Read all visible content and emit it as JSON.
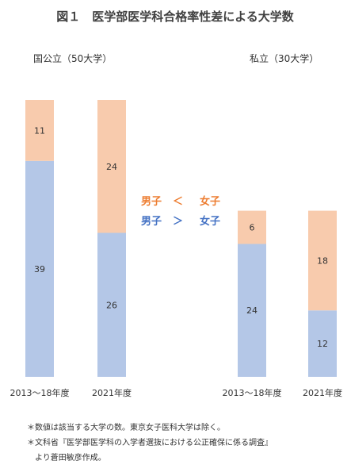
{
  "chart_data": {
    "type": "bar",
    "stacked": true,
    "title": "図１　医学部医学科合格率性差による大学数",
    "groups": [
      {
        "label": "国公立（50大学）",
        "categories": [
          "2013〜18年度",
          "2021年度"
        ],
        "series": [
          {
            "name": "男子 ＞ 女子",
            "values": [
              39,
              26
            ],
            "color": "#b4c7e7"
          },
          {
            "name": "男子 ＜ 女子",
            "values": [
              11,
              24
            ],
            "color": "#f8cbad"
          }
        ]
      },
      {
        "label": "私立（30大学）",
        "categories": [
          "2013〜18年度",
          "2021年度"
        ],
        "series": [
          {
            "name": "男子 ＞ 女子",
            "values": [
              24,
              12
            ],
            "color": "#b4c7e7"
          },
          {
            "name": "男子 ＜ 女子",
            "values": [
              6,
              18
            ],
            "color": "#f8cbad"
          }
        ]
      }
    ],
    "legend": [
      {
        "left": "男子",
        "op": "＜",
        "right": "女子",
        "color": "#ed7d31"
      },
      {
        "left": "男子",
        "op": "＞",
        "right": "女子",
        "color": "#4472c4"
      }
    ],
    "legend_placement": "center",
    "grid": false,
    "notes": [
      "＊数値は該当する大学の数。東京女子医科大学は除く。",
      "＊文科省『医学部医学科の入学者選抜における公正確保に係る調査』",
      "　より蒼田敏彦作成。"
    ]
  }
}
